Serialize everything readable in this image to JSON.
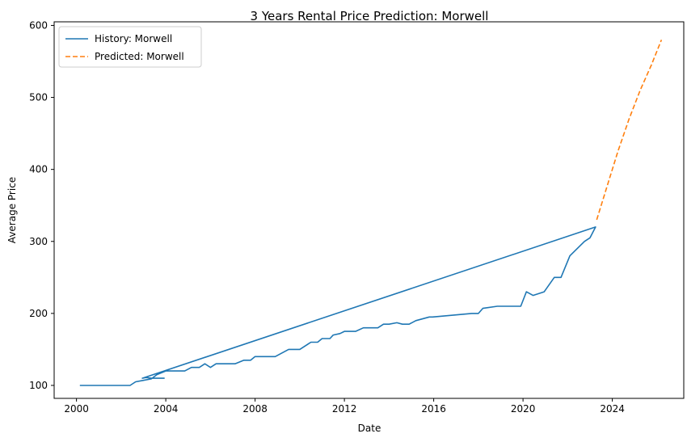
{
  "chart_data": {
    "type": "line",
    "title": "3 Years Rental Price Prediction: Morwell",
    "xlabel": "Date",
    "ylabel": "Average Price",
    "xlim": [
      1999.0,
      2027.2
    ],
    "ylim": [
      82,
      605
    ],
    "xticks": [
      2000,
      2004,
      2008,
      2012,
      2016,
      2020,
      2024
    ],
    "xtick_labels": [
      "2000",
      "2004",
      "2008",
      "2012",
      "2016",
      "2020",
      "2024"
    ],
    "yticks": [
      100,
      200,
      300,
      400,
      500,
      600
    ],
    "ytick_labels": [
      "100",
      "200",
      "300",
      "400",
      "500",
      "600"
    ],
    "grid": false,
    "legend_position": "top-left",
    "series": [
      {
        "name": "History: Morwell",
        "color": "#1f77b4",
        "style": "solid",
        "x": [
          2000.15,
          2002.4,
          2002.65,
          2003.0,
          2003.35,
          2003.6,
          2004.0,
          2004.6,
          2004.85,
          2005.15,
          2005.5,
          2005.75,
          2006.0,
          2006.25,
          2006.5,
          2007.1,
          2007.5,
          2007.8,
          2008.0,
          2008.9,
          2009.5,
          2010.0,
          2010.5,
          2010.8,
          2011.0,
          2011.35,
          2011.5,
          2011.8,
          2012.0,
          2012.35,
          2012.5,
          2012.85,
          2013.0,
          2013.5,
          2013.75,
          2014.0,
          2014.35,
          2014.6,
          2014.9,
          2015.2,
          2015.8,
          2015.95,
          2017.7,
          2018.0,
          2018.2,
          2018.85,
          2019.9,
          2020.15,
          2020.45,
          2020.95,
          2021.4,
          2021.7,
          2022.1,
          2022.75,
          2023.0,
          2023.25,
          2002.95,
          2003.1,
          2003.35,
          2003.6,
          2003.95
        ],
        "y": [
          100,
          100,
          105,
          107,
          109,
          115,
          120,
          120,
          120,
          125,
          125,
          130,
          125,
          130,
          130,
          130,
          135,
          135,
          140,
          140,
          150,
          150,
          160,
          160,
          165,
          165,
          170,
          172,
          175,
          175,
          175,
          180,
          180,
          180,
          185,
          185,
          187,
          185,
          185,
          190,
          195,
          195,
          200,
          200,
          207,
          210,
          210,
          230,
          225,
          230,
          250,
          250,
          280,
          300,
          305,
          320,
          110,
          111,
          110,
          110,
          110
        ]
      },
      {
        "name": "Predicted: Morwell",
        "color": "#ff7f0e",
        "style": "dashed",
        "x": [
          2023.3,
          2023.75,
          2024.25,
          2024.75,
          2025.25,
          2025.75,
          2026.2
        ],
        "y": [
          330,
          375,
          425,
          470,
          510,
          545,
          580
        ]
      }
    ]
  }
}
